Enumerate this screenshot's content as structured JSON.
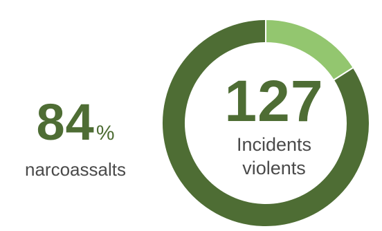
{
  "colors": {
    "dark_green": "#4e6d34",
    "light_green": "#93c66f",
    "text_gray": "#4a4a4a"
  },
  "left_stat": {
    "value": "84",
    "unit": "%",
    "label": "narcoassalts"
  },
  "center": {
    "value": "127",
    "label_line1": "Incidents",
    "label_line2": "violents"
  },
  "chart_data": {
    "type": "pie",
    "categories": [
      "narcoassalts",
      ""
    ],
    "values": [
      84,
      16
    ],
    "colors": [
      "#4e6d34",
      "#93c66f"
    ],
    "total_label": "127"
  }
}
